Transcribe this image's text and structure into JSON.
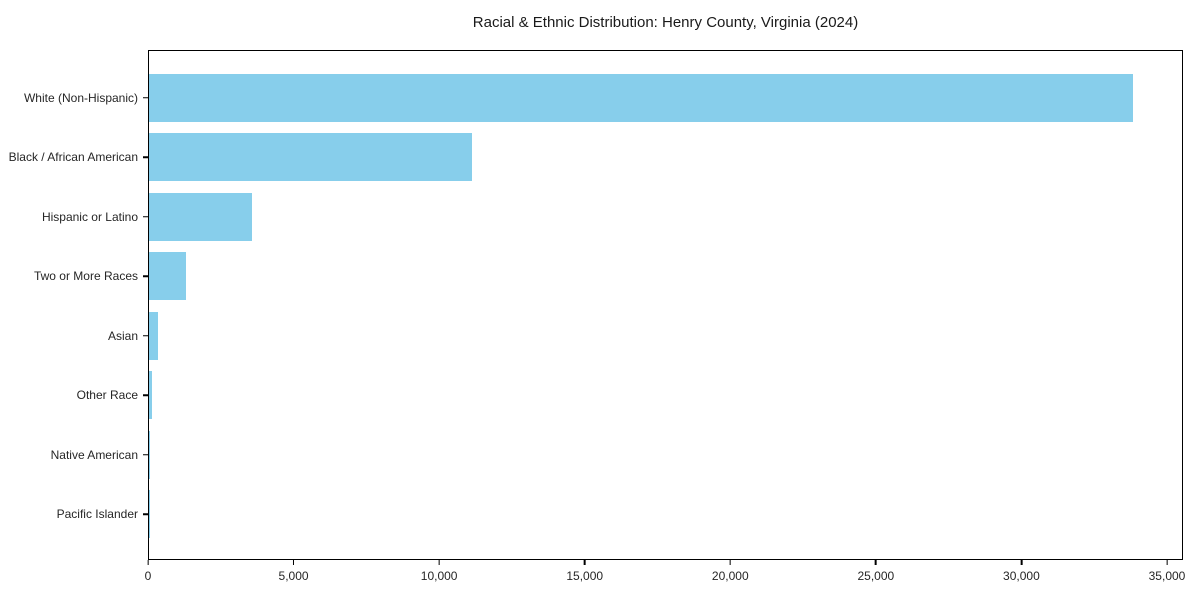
{
  "figure": {
    "background_color": "#ffffff",
    "frame_color": "#000000",
    "text_color": "#262626"
  },
  "chart_data": {
    "type": "bar",
    "orientation": "horizontal",
    "title": "Racial & Ethnic Distribution: Henry County, Virginia (2024)",
    "categories": [
      "White (Non-Hispanic)",
      "Black / African American",
      "Hispanic or Latino",
      "Two or More Races",
      "Asian",
      "Other Race",
      "Native American",
      "Pacific Islander"
    ],
    "values": [
      33850,
      11100,
      3540,
      1270,
      300,
      100,
      50,
      20
    ],
    "xlabel": "",
    "ylabel": "",
    "xlim": [
      0,
      35550
    ],
    "x_ticks": [
      0,
      5000,
      10000,
      15000,
      20000,
      25000,
      30000,
      35000
    ],
    "x_tick_labels": [
      "0",
      "5,000",
      "10,000",
      "15,000",
      "20,000",
      "25,000",
      "30,000",
      "35,000"
    ],
    "bar_color": "#87CEEB",
    "grid": false,
    "legend": null
  }
}
